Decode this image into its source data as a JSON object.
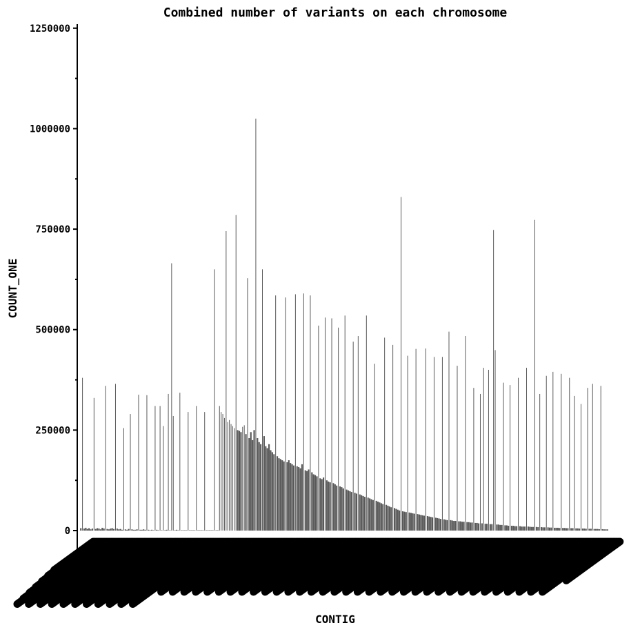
{
  "chart_data": {
    "type": "bar",
    "title": "Combined number of variants on each chromosome",
    "xlabel": "CONTIG",
    "ylabel": "COUNT_ONE",
    "ylim": [
      0,
      1260000
    ],
    "yticks": [
      "0",
      "250000",
      "500000",
      "750000",
      "1000000",
      "1250000"
    ],
    "grid": false,
    "legend": "none",
    "bar_color": "#595959",
    "x_tick_labels_note": "unreadable (overlapping rotated labels)",
    "series": [
      {
        "values": [
          6000,
          380000,
          5000,
          7000,
          4000,
          6000,
          3000,
          5000,
          330000,
          4000,
          6000,
          5000,
          3000,
          7000,
          5000,
          360000,
          4000,
          3000,
          5000,
          6000,
          4000,
          365000,
          5000,
          3000,
          4000,
          2000,
          255000,
          3000,
          2000,
          4000,
          290000,
          3000,
          2000,
          2000,
          3000,
          338000,
          2000,
          2000,
          3000,
          2000,
          337000,
          2000,
          1000,
          2000,
          1000,
          310000,
          2000,
          1000,
          310000,
          1000,
          260000,
          1000,
          2000,
          340000,
          1000,
          665000,
          285000,
          1000,
          2000,
          1000,
          343000,
          1000,
          1000,
          1000,
          1000,
          295000,
          1000,
          1000,
          1000,
          1000,
          310000,
          1000,
          1000,
          1000,
          1000,
          295000,
          1000,
          1000,
          1000,
          1000,
          1000,
          650000,
          1000,
          1000,
          310000,
          295000,
          290000,
          280000,
          745000,
          270000,
          275000,
          265000,
          260000,
          255000,
          785000,
          250000,
          248000,
          245000,
          258000,
          262000,
          240000,
          628000,
          230000,
          245000,
          225000,
          250000,
          1025000,
          230000,
          220000,
          215000,
          650000,
          235000,
          210000,
          205000,
          215000,
          200000,
          195000,
          190000,
          585000,
          185000,
          180000,
          178000,
          175000,
          172000,
          580000,
          170000,
          175000,
          168000,
          165000,
          162000,
          588000,
          160000,
          158000,
          155000,
          165000,
          590000,
          150000,
          148000,
          152000,
          585000,
          145000,
          140000,
          138000,
          135000,
          510000,
          130000,
          128000,
          132000,
          530000,
          125000,
          122000,
          120000,
          528000,
          118000,
          115000,
          112000,
          505000,
          110000,
          108000,
          105000,
          535000,
          102000,
          100000,
          98000,
          96000,
          470000,
          94000,
          92000,
          484000,
          90000,
          88000,
          86000,
          84000,
          535000,
          82000,
          80000,
          78000,
          76000,
          415000,
          74000,
          72000,
          70000,
          68000,
          66000,
          480000,
          64000,
          62000,
          60000,
          58000,
          462000,
          56000,
          54000,
          52000,
          50000,
          830000,
          48000,
          47000,
          46000,
          435000,
          45000,
          44000,
          43000,
          42000,
          452000,
          41000,
          40000,
          39000,
          38000,
          37000,
          453000,
          36000,
          35000,
          34000,
          33000,
          432000,
          32000,
          31000,
          30000,
          29000,
          432000,
          28000,
          27000,
          26000,
          495000,
          26000,
          25000,
          24000,
          24000,
          410000,
          23000,
          23000,
          22000,
          22000,
          484000,
          21000,
          21000,
          20000,
          20000,
          355000,
          19000,
          19000,
          18000,
          340000,
          18000,
          405000,
          17000,
          17000,
          400000,
          16000,
          16000,
          748000,
          449000,
          15000,
          15000,
          14000,
          14000,
          368000,
          13000,
          13000,
          12000,
          362000,
          12000,
          12000,
          11000,
          11000,
          380000,
          11000,
          10000,
          10000,
          10000,
          405000,
          10000,
          9500,
          9000,
          9000,
          773000,
          9000,
          8500,
          340000,
          8500,
          8000,
          8000,
          385000,
          8000,
          7500,
          7500,
          395000,
          7000,
          7000,
          7000,
          6500,
          390000,
          6500,
          6500,
          6000,
          6000,
          380000,
          6000,
          6000,
          335000,
          5500,
          5500,
          5000,
          315000,
          5000,
          5000,
          4500,
          355000,
          4500,
          4500,
          365000,
          4000,
          4000,
          4000,
          3500,
          360000,
          3500,
          3000,
          3000,
          3000
        ]
      }
    ]
  }
}
